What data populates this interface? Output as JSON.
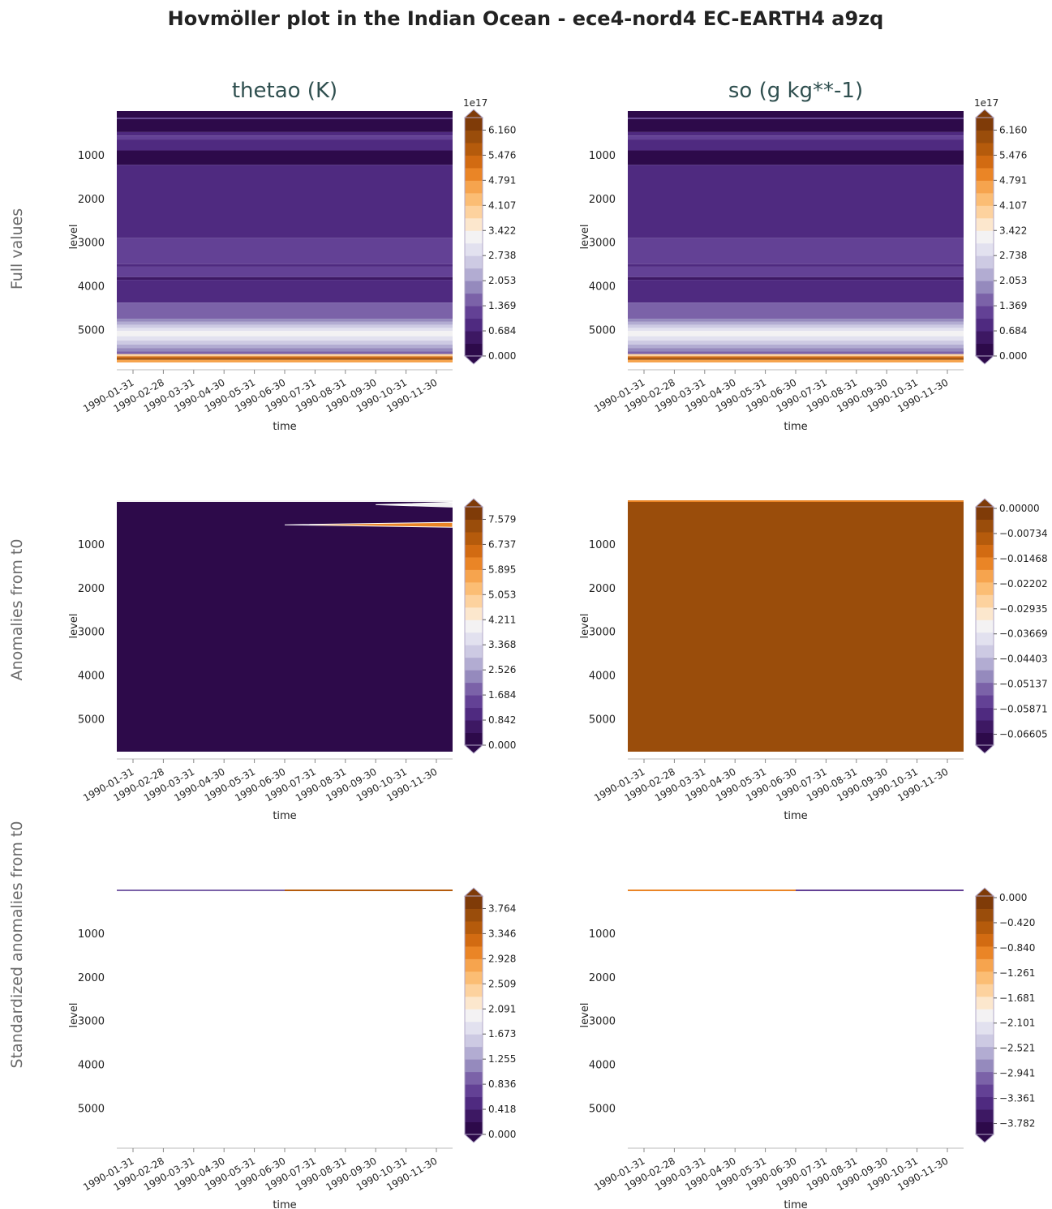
{
  "figure_title": "Hovmöller plot in the Indian Ocean - ece4-nord4 EC-EARTH4 a9zq",
  "column_titles": [
    "thetao (K)",
    "so (g kg**-1)"
  ],
  "row_labels": [
    "Full values",
    "Anomalies from t0",
    "Standardized anomalies from t0"
  ],
  "colors": {
    "palette": [
      "#2d0a4a",
      "#3d1863",
      "#4f2a80",
      "#634195",
      "#7b62a8",
      "#958abd",
      "#b2acd2",
      "#cdcae3",
      "#e2e1ef",
      "#f3f2f3",
      "#fce7cd",
      "#fdd29e",
      "#fbbd74",
      "#f6a44e",
      "#ea8526",
      "#d26b12",
      "#b55b0c",
      "#9a4d0b",
      "#7f3b08"
    ],
    "title_text": "#2f4f4f",
    "row_label_text": "#6b6b6b"
  },
  "chart_data": [
    {
      "type": "heatmap",
      "id": "full-thetao",
      "row": 0,
      "col": 0,
      "title": "thetao (K)",
      "xlabel": "time",
      "ylabel": "level",
      "x": [
        "1990-01-31",
        "1990-02-28",
        "1990-03-31",
        "1990-04-30",
        "1990-05-31",
        "1990-06-30",
        "1990-07-31",
        "1990-08-31",
        "1990-09-30",
        "1990-10-31",
        "1990-11-30"
      ],
      "yticks": [
        "1000",
        "2000",
        "3000",
        "4000",
        "5000"
      ],
      "ylim": [
        5750,
        0
      ],
      "colorbar": {
        "exponent": "1e17",
        "ticks": [
          "0.000",
          "0.684",
          "1.369",
          "2.053",
          "2.738",
          "3.422",
          "4.107",
          "4.791",
          "5.476",
          "6.160"
        ]
      },
      "bands": [
        {
          "from": 0,
          "to": 150,
          "class": 0
        },
        {
          "from": 150,
          "to": 180,
          "class": 3
        },
        {
          "from": 180,
          "to": 480,
          "class": 0
        },
        {
          "from": 480,
          "to": 560,
          "class": 2
        },
        {
          "from": 560,
          "to": 650,
          "class": 3
        },
        {
          "from": 650,
          "to": 900,
          "class": 2
        },
        {
          "from": 900,
          "to": 1230,
          "class": 0
        },
        {
          "from": 1230,
          "to": 2900,
          "class": 2
        },
        {
          "from": 2900,
          "to": 3500,
          "class": 3
        },
        {
          "from": 3500,
          "to": 3560,
          "class": 2
        },
        {
          "from": 3560,
          "to": 3800,
          "class": 3
        },
        {
          "from": 3800,
          "to": 3860,
          "class": 1
        },
        {
          "from": 3860,
          "to": 4380,
          "class": 2
        },
        {
          "from": 4380,
          "to": 4750,
          "class": 4
        },
        {
          "from": 4750,
          "to": 4820,
          "class": 5
        },
        {
          "from": 4820,
          "to": 4890,
          "class": 6
        },
        {
          "from": 4890,
          "to": 4960,
          "class": 7
        },
        {
          "from": 4960,
          "to": 5030,
          "class": 8
        },
        {
          "from": 5030,
          "to": 5150,
          "class": 9
        },
        {
          "from": 5150,
          "to": 5250,
          "class": 8
        },
        {
          "from": 5250,
          "to": 5340,
          "class": 7
        },
        {
          "from": 5340,
          "to": 5420,
          "class": 6
        },
        {
          "from": 5420,
          "to": 5500,
          "class": 5
        },
        {
          "from": 5500,
          "to": 5560,
          "class": 4
        },
        {
          "from": 5560,
          "to": 5610,
          "class": 11
        },
        {
          "from": 5610,
          "to": 5650,
          "class": 15
        },
        {
          "from": 5650,
          "to": 5690,
          "class": 17
        },
        {
          "from": 5690,
          "to": 5750,
          "class": 13
        }
      ]
    },
    {
      "type": "heatmap",
      "id": "full-so",
      "row": 0,
      "col": 1,
      "title": "so (g kg**-1)",
      "xlabel": "time",
      "ylabel": "level",
      "x": [
        "1990-01-31",
        "1990-02-28",
        "1990-03-31",
        "1990-04-30",
        "1990-05-31",
        "1990-06-30",
        "1990-07-31",
        "1990-08-31",
        "1990-09-30",
        "1990-10-31",
        "1990-11-30"
      ],
      "yticks": [
        "1000",
        "2000",
        "3000",
        "4000",
        "5000"
      ],
      "ylim": [
        5750,
        0
      ],
      "colorbar": {
        "exponent": "1e17",
        "ticks": [
          "0.000",
          "0.684",
          "1.369",
          "2.053",
          "2.738",
          "3.422",
          "4.107",
          "4.791",
          "5.476",
          "6.160"
        ]
      },
      "bands": [
        {
          "from": 0,
          "to": 150,
          "class": 0
        },
        {
          "from": 150,
          "to": 180,
          "class": 3
        },
        {
          "from": 180,
          "to": 480,
          "class": 0
        },
        {
          "from": 480,
          "to": 560,
          "class": 2
        },
        {
          "from": 560,
          "to": 650,
          "class": 3
        },
        {
          "from": 650,
          "to": 900,
          "class": 2
        },
        {
          "from": 900,
          "to": 1230,
          "class": 0
        },
        {
          "from": 1230,
          "to": 2900,
          "class": 2
        },
        {
          "from": 2900,
          "to": 3500,
          "class": 3
        },
        {
          "from": 3500,
          "to": 3560,
          "class": 2
        },
        {
          "from": 3560,
          "to": 3800,
          "class": 3
        },
        {
          "from": 3800,
          "to": 3860,
          "class": 1
        },
        {
          "from": 3860,
          "to": 4380,
          "class": 2
        },
        {
          "from": 4380,
          "to": 4750,
          "class": 4
        },
        {
          "from": 4750,
          "to": 4820,
          "class": 5
        },
        {
          "from": 4820,
          "to": 4890,
          "class": 6
        },
        {
          "from": 4890,
          "to": 4960,
          "class": 7
        },
        {
          "from": 4960,
          "to": 5030,
          "class": 8
        },
        {
          "from": 5030,
          "to": 5150,
          "class": 9
        },
        {
          "from": 5150,
          "to": 5250,
          "class": 8
        },
        {
          "from": 5250,
          "to": 5340,
          "class": 7
        },
        {
          "from": 5340,
          "to": 5420,
          "class": 6
        },
        {
          "from": 5420,
          "to": 5500,
          "class": 5
        },
        {
          "from": 5500,
          "to": 5560,
          "class": 4
        },
        {
          "from": 5560,
          "to": 5610,
          "class": 11
        },
        {
          "from": 5610,
          "to": 5650,
          "class": 15
        },
        {
          "from": 5650,
          "to": 5690,
          "class": 17
        },
        {
          "from": 5690,
          "to": 5750,
          "class": 13
        }
      ]
    },
    {
      "type": "heatmap",
      "id": "anom-thetao",
      "row": 1,
      "col": 0,
      "xlabel": "time",
      "ylabel": "level",
      "x": [
        "1990-01-31",
        "1990-02-28",
        "1990-03-31",
        "1990-04-30",
        "1990-05-31",
        "1990-06-30",
        "1990-07-31",
        "1990-08-31",
        "1990-09-30",
        "1990-10-31",
        "1990-11-30"
      ],
      "yticks": [
        "1000",
        "2000",
        "3000",
        "4000",
        "5000"
      ],
      "ylim": [
        5750,
        0
      ],
      "colorbar": {
        "ticks": [
          "0.000",
          "0.842",
          "1.684",
          "2.526",
          "3.368",
          "4.211",
          "5.053",
          "5.895",
          "6.737",
          "7.579"
        ]
      },
      "bands": [
        {
          "from": 0,
          "to": 5750,
          "class": 0
        }
      ],
      "features": [
        {
          "kind": "surface-line",
          "class": 9,
          "depth": 0
        },
        {
          "kind": "wedge",
          "class": 9,
          "depth": 100,
          "from_time": "1990-09-30"
        },
        {
          "kind": "wedge",
          "class": 14,
          "depth": 560,
          "from_time": "1990-06-30"
        }
      ]
    },
    {
      "type": "heatmap",
      "id": "anom-so",
      "row": 1,
      "col": 1,
      "xlabel": "time",
      "ylabel": "level",
      "x": [
        "1990-01-31",
        "1990-02-28",
        "1990-03-31",
        "1990-04-30",
        "1990-05-31",
        "1990-06-30",
        "1990-07-31",
        "1990-08-31",
        "1990-09-30",
        "1990-10-31",
        "1990-11-30"
      ],
      "yticks": [
        "1000",
        "2000",
        "3000",
        "4000",
        "5000"
      ],
      "ylim": [
        5750,
        0
      ],
      "colorbar": {
        "ticks": [
          "0.00000",
          "−0.00734",
          "−0.01468",
          "−0.02202",
          "−0.02935",
          "−0.03669",
          "−0.04403",
          "−0.05137",
          "−0.05871",
          "−0.06605"
        ],
        "ticks_descending": true
      },
      "bands": [
        {
          "from": 0,
          "to": 5750,
          "class": 17
        }
      ],
      "features": [
        {
          "kind": "surface-line",
          "class": 14,
          "depth": 0
        }
      ]
    },
    {
      "type": "heatmap",
      "id": "std-thetao",
      "row": 2,
      "col": 0,
      "xlabel": "time",
      "ylabel": "level",
      "x": [
        "1990-01-31",
        "1990-02-28",
        "1990-03-31",
        "1990-04-30",
        "1990-05-31",
        "1990-06-30",
        "1990-07-31",
        "1990-08-31",
        "1990-09-30",
        "1990-10-31",
        "1990-11-30"
      ],
      "yticks": [
        "1000",
        "2000",
        "3000",
        "4000",
        "5000"
      ],
      "ylim": [
        5750,
        0
      ],
      "colorbar": {
        "ticks": [
          "0.000",
          "0.418",
          "0.836",
          "1.255",
          "1.673",
          "2.091",
          "2.509",
          "2.928",
          "3.346",
          "3.764"
        ]
      },
      "bands": [],
      "features": [
        {
          "kind": "surface-line",
          "class": 13,
          "depth": 0,
          "left_class": 4,
          "right_class": 16
        }
      ]
    },
    {
      "type": "heatmap",
      "id": "std-so",
      "row": 2,
      "col": 1,
      "xlabel": "time",
      "ylabel": "level",
      "x": [
        "1990-01-31",
        "1990-02-28",
        "1990-03-31",
        "1990-04-30",
        "1990-05-31",
        "1990-06-30",
        "1990-07-31",
        "1990-08-31",
        "1990-09-30",
        "1990-10-31",
        "1990-11-30"
      ],
      "yticks": [
        "1000",
        "2000",
        "3000",
        "4000",
        "5000"
      ],
      "ylim": [
        5750,
        0
      ],
      "colorbar": {
        "ticks": [
          "0.000",
          "−0.420",
          "−0.840",
          "−1.261",
          "−1.681",
          "−2.101",
          "−2.521",
          "−2.941",
          "−3.361",
          "−3.782"
        ],
        "ticks_descending": true
      },
      "bands": [],
      "features": [
        {
          "kind": "surface-line",
          "class": 13,
          "depth": 0,
          "left_class": 14,
          "right_class": 3
        }
      ]
    }
  ]
}
